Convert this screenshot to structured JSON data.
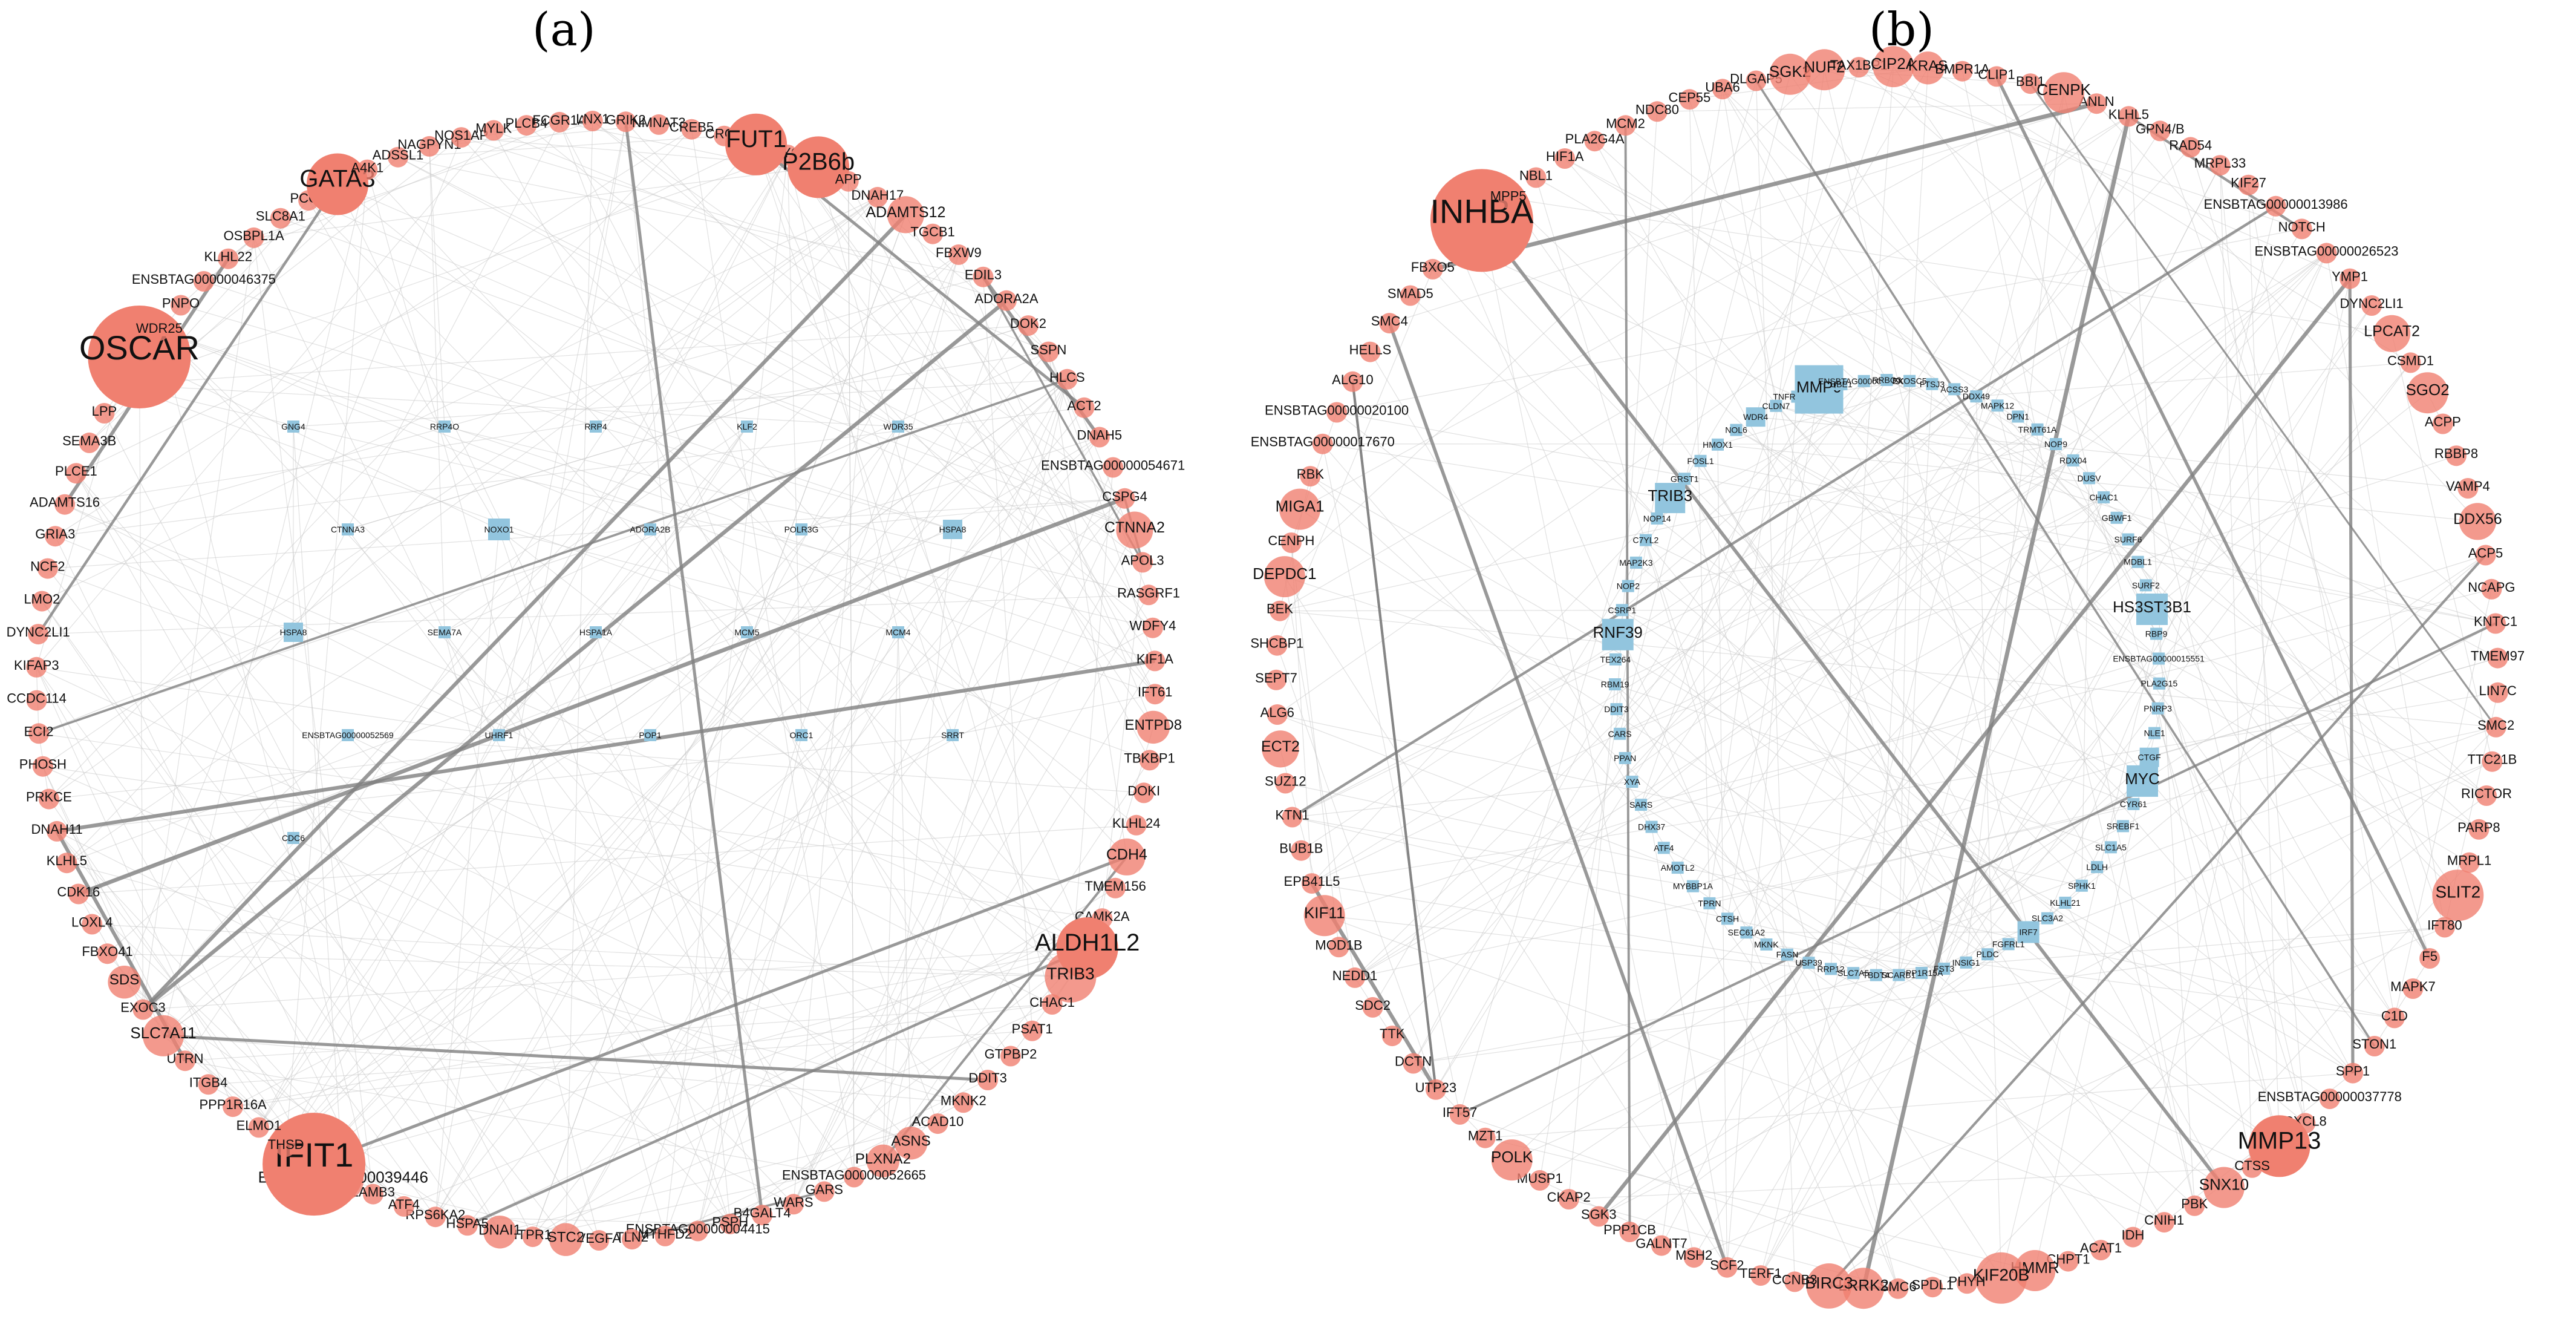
{
  "panels": [
    {
      "label": "(a)",
      "up_color": "#f08070",
      "down_color": "#92c5de",
      "ring": [
        "MYCI",
        "P2B6b",
        "APP",
        "DNAH17",
        "ADAMTS12",
        "TGCB1",
        "FBXW9",
        "EDIL3",
        "ADORA2A",
        "DOK2",
        "SSPN",
        "HLCS",
        "ACT2",
        "DNAH5",
        "ENSBTAG00000054671",
        "CSPG4",
        "CTNNA2",
        "APOL3",
        "RASGRF1",
        "WDFY4",
        "KIF1A",
        "IFT61",
        "ENTPD8",
        "TBKBP1",
        "DOKI",
        "KLHL24",
        "CDH4",
        "TMEM156",
        "CAMK2A",
        "ALDH1L2",
        "TRIB3",
        "CHAC1",
        "PSAT1",
        "GTPBP2",
        "DDIT3",
        "MKNK2",
        "ACAD10",
        "ASNS",
        "PLXNA2",
        "ENSBTAG00000052665",
        "GARS",
        "WARS",
        "B4GALT4",
        "PSPH",
        "ENSBTAG00000004415",
        "MTHFD2",
        "TLN2",
        "VEGFA",
        "STC2",
        "ITPR1",
        "DNAI1",
        "HSPA5",
        "RPS6KA2",
        "ATF4",
        "LAMB3",
        "ENSBTAG00000039446",
        "IFIT1",
        "THSD",
        "ELMO1",
        "PPP1R16A",
        "ITGB4",
        "UTRN",
        "SLC7A11",
        "EXOC3",
        "SDS",
        "FBXO41",
        "LOXL4",
        "CDK16",
        "KLHL5",
        "DNAH11",
        "PRKCE",
        "PHOSH",
        "ECI2",
        "CCDC114",
        "KIFAP3",
        "DYNC2LI1",
        "LMO2",
        "NCF2",
        "GRIA3",
        "ADAMTS16",
        "PLCE1",
        "SEMA3B",
        "LPP",
        "EXOC6",
        "OSCAR",
        "WDR25",
        "PNPO",
        "ENSBTAG00000046375",
        "KLHL22",
        "OSBPL1A",
        "SLC8A1",
        "PCCA",
        "GATA3",
        "A4K1",
        "ADSSL1",
        "NAGPYN1",
        "NOS1AP",
        "MYLK",
        "PLCB4",
        "FCGR1A",
        "LNX1",
        "GRIK2",
        "NMNAT3",
        "CREB5",
        "CRCB",
        "FUT1"
      ],
      "inner": [
        "GNG4",
        "RRP4O",
        "RRP4",
        "KLF2",
        "WDR35",
        "CTNNA3",
        "NOXO1",
        "ADORA2B",
        "POLR3G",
        "HSPA8",
        "HSPA8",
        "SEMA7A",
        "HSPA1A",
        "MCM5",
        "MCM4",
        "ENSBTAG00000052569",
        "UHRF1",
        "POP1",
        "ORC1",
        "SRRT",
        "CDC6"
      ]
    },
    {
      "label": "(b)",
      "up_color": "#f08070",
      "down_color": "#92c5de",
      "ring": [
        "ANLN",
        "KLHL5",
        "GPN4/B",
        "RAD54",
        "MRPL33",
        "KIF27",
        "ENSBTAG00000013986",
        "NOTCH",
        "ENSBTAG00000026523",
        "YMP1",
        "DYNC2LI1",
        "LPCAT2",
        "CSMD1",
        "SGO2",
        "ACPP",
        "RBBP8",
        "VAMP4",
        "DDX56",
        "ACP5",
        "NCAPG",
        "KNTC1",
        "TMEM97",
        "LIN7C",
        "SMC2",
        "TTC21B",
        "RICTOR",
        "PARP8",
        "MRPL1",
        "SLIT2",
        "IFT80",
        "F5",
        "MAPK7",
        "C1D",
        "STON1",
        "SPP1",
        "ENSBTAG00000037778",
        "CXCL8",
        "MMP13",
        "CTSS",
        "SNX10",
        "PBK",
        "CNIH1",
        "IDH",
        "ACAT1",
        "CHPT1",
        "HMMR",
        "KIF20B",
        "PHYH",
        "SPDL1",
        "SMC6",
        "LRRK2",
        "BIRC3",
        "CCNB3",
        "TERF1",
        "SCF2",
        "MSH2",
        "GALNT7",
        "PPP1CB",
        "SGK3",
        "CKAP2",
        "MUSP1",
        "POLK",
        "MZT1",
        "IFT57",
        "UTP23",
        "DCTN",
        "TTK",
        "SDC2",
        "NEDD1",
        "MOD1B",
        "KIF11",
        "EPB41L5",
        "BUB1B",
        "KTN1",
        "SUZ12",
        "ECT2",
        "ALG6",
        "SEPT7",
        "SHCBP1",
        "BEK",
        "DEPDC1",
        "CENPH",
        "MIGA1",
        "RBK",
        "ENSBTAG00000017670",
        "ENSBTAG00000020100",
        "ALG10",
        "HELLS",
        "SMC4",
        "SMAD5",
        "FBXO5",
        "XPO1",
        "INHBA",
        "MPP5",
        "NBL1",
        "HIF1A",
        "PLA2G4A",
        "MCM2",
        "NDC80",
        "CEP55",
        "UBA6",
        "DLGAP5",
        "SGK2",
        "NUF2",
        "TAX1BP1",
        "CIP2A",
        "KRAS",
        "BMPR1A",
        "CLIP1",
        "BBI1",
        "CENPK"
      ],
      "inner": [
        "ACSS3",
        "DDX49",
        "MAPK12",
        "DPN1",
        "TRMT61A",
        "NOP9",
        "RDX04",
        "DUSV",
        "CHAC1",
        "GBWF1",
        "SURF6",
        "MDBL1",
        "SURF2",
        "HS3ST3B1",
        "RBP9",
        "ENSBTAG00000015551",
        "PLA2G15",
        "PNRP3",
        "NLE1",
        "CTGF",
        "MYC",
        "CYR61",
        "SREBF1",
        "SLC1A5",
        "LDLH",
        "SPHK1",
        "KLHL21",
        "SLC3A2",
        "IRF7",
        "FGFRL1",
        "PLDC",
        "INSIG1",
        "FST3",
        "PPP1R15A",
        "SCARB1",
        "TBDT4",
        "SLC7A5",
        "RRP12",
        "USP39",
        "FASN",
        "MKNK",
        "SEC61A2",
        "CTSH",
        "TPRN",
        "MYBBP1A",
        "AMOTL2",
        "ATF4",
        "DHX37",
        "SARS",
        "XYA",
        "PPAN",
        "CARS",
        "DDIT3",
        "RBM19",
        "TEX264",
        "RNF39",
        "CSRP1",
        "NOP2",
        "MAP2K3",
        "C7YL2",
        "NOP14",
        "TRIB3",
        "GRST1",
        "FOSL1",
        "HMOX1",
        "NOL6",
        "WDR4",
        "CLDN7",
        "TNFRSF12A",
        "MMP9",
        "UBE1",
        "ENSBTAG00000007906",
        "RRBO3",
        "EXOSC5",
        "FTSJ3"
      ]
    }
  ]
}
